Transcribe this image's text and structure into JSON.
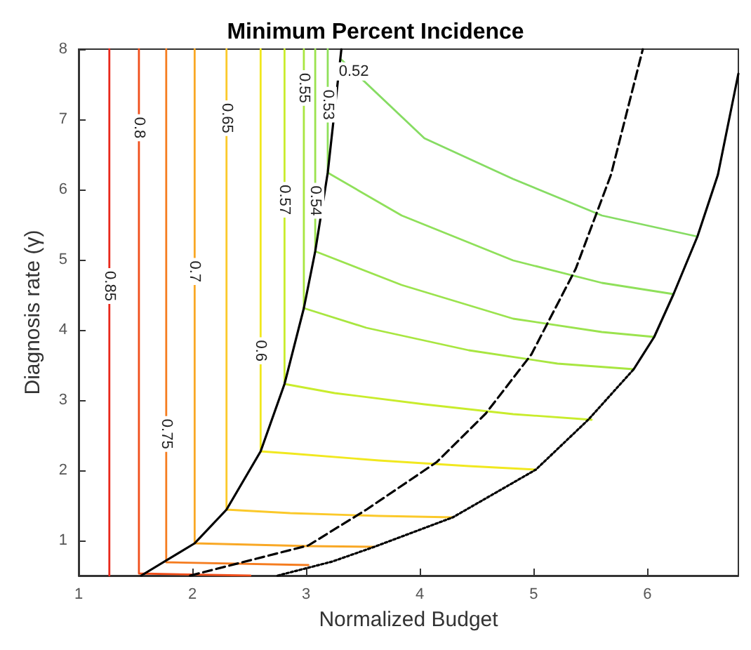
{
  "chart_data": {
    "type": "line",
    "title": "Minimum Percent Incidence",
    "xlabel": "Normalized Budget",
    "ylabel": "Diagnosis rate (γ)",
    "xlim": [
      1,
      6.8
    ],
    "ylim": [
      0.5,
      8
    ],
    "xticks": [
      1,
      2,
      3,
      4,
      5,
      6
    ],
    "yticks": [
      1,
      2,
      3,
      4,
      5,
      6,
      7,
      8
    ],
    "grid": false,
    "legend": false,
    "marker": "none",
    "line_style": "solid",
    "series": [
      {
        "name": "0.85",
        "color": "#e8291c",
        "x": [
          1.27,
          1.27
        ],
        "values": [
          8,
          0.5
        ]
      },
      {
        "name": "0.8",
        "color": "#f04e1a",
        "x": [
          1.53,
          1.53,
          2.51
        ],
        "values": [
          8,
          0.53,
          0.5
        ]
      },
      {
        "name": "0.75",
        "color": "#f57c1f",
        "x": [
          1.77,
          1.77,
          3.02
        ],
        "values": [
          8,
          0.69,
          0.65
        ]
      },
      {
        "name": "0.7",
        "color": "#f9a825",
        "x": [
          2.02,
          2.02,
          3.02,
          3.6
        ],
        "values": [
          8,
          0.96,
          0.92,
          0.91
        ]
      },
      {
        "name": "0.65",
        "color": "#fbc92a",
        "x": [
          2.3,
          2.3,
          2.86,
          3.64,
          4.29
        ],
        "values": [
          8,
          1.44,
          1.39,
          1.35,
          1.33
        ]
      },
      {
        "name": "0.6",
        "color": "#f1e81f",
        "x": [
          2.6,
          2.6,
          2.86,
          3.64,
          4.43,
          5.02
        ],
        "values": [
          8,
          2.27,
          2.24,
          2.14,
          2.06,
          2.01
        ]
      },
      {
        "name": "0.57",
        "color": "#c9ec2c",
        "x": [
          2.81,
          2.81,
          3.25,
          4.04,
          4.82,
          5.51
        ],
        "values": [
          8,
          3.23,
          3.1,
          2.94,
          2.8,
          2.72
        ]
      },
      {
        "name": "0.55",
        "color": "#a8e640",
        "x": [
          2.98,
          2.98,
          3.53,
          4.43,
          5.21,
          5.88
        ],
        "values": [
          8,
          4.31,
          4.03,
          3.71,
          3.52,
          3.44
        ]
      },
      {
        "name": "0.54",
        "color": "#9be34e",
        "x": [
          3.08,
          3.08,
          3.84,
          4.82,
          5.6,
          6.06
        ],
        "values": [
          8,
          5.12,
          4.64,
          4.16,
          3.97,
          3.9
        ]
      },
      {
        "name": "0.53",
        "color": "#8fe05a",
        "x": [
          3.19,
          3.19,
          3.84,
          4.82,
          5.6,
          6.23
        ],
        "values": [
          8,
          6.24,
          5.63,
          4.99,
          4.67,
          4.51
        ]
      },
      {
        "name": "0.52",
        "color": "#86dc63",
        "x": [
          3.31,
          4.04,
          4.82,
          5.6,
          6.44
        ],
        "values": [
          7.85,
          6.73,
          6.15,
          5.63,
          5.33
        ]
      },
      {
        "color": "#000000",
        "line_style": "solid",
        "x": [
          1.55,
          2.02,
          2.3,
          2.6,
          2.81,
          2.98,
          3.08,
          3.19,
          3.31
        ],
        "values": [
          0.5,
          0.96,
          1.44,
          2.27,
          3.23,
          4.31,
          5.12,
          6.24,
          8
        ]
      },
      {
        "color": "#000000",
        "line_style": "dashed",
        "x": [
          1.98,
          3.02,
          3.53,
          4.15,
          4.58,
          4.98,
          5.37,
          5.68,
          5.96
        ],
        "values": [
          0.5,
          0.93,
          1.44,
          2.12,
          2.81,
          3.65,
          4.87,
          6.21,
          8
        ]
      },
      {
        "color": "#000000",
        "line_style": "dotted",
        "x": [
          2.75,
          3.23,
          3.6,
          4.29,
          5.02,
          5.48,
          5.88
        ],
        "values": [
          0.5,
          0.7,
          0.91,
          1.33,
          2.01,
          2.72,
          3.44
        ]
      },
      {
        "color": "#000000",
        "line_style": "solid",
        "x": [
          5.88,
          6.06,
          6.23,
          6.44,
          6.62,
          6.8
        ],
        "values": [
          3.44,
          3.9,
          4.51,
          5.33,
          6.21,
          7.65
        ]
      }
    ]
  }
}
